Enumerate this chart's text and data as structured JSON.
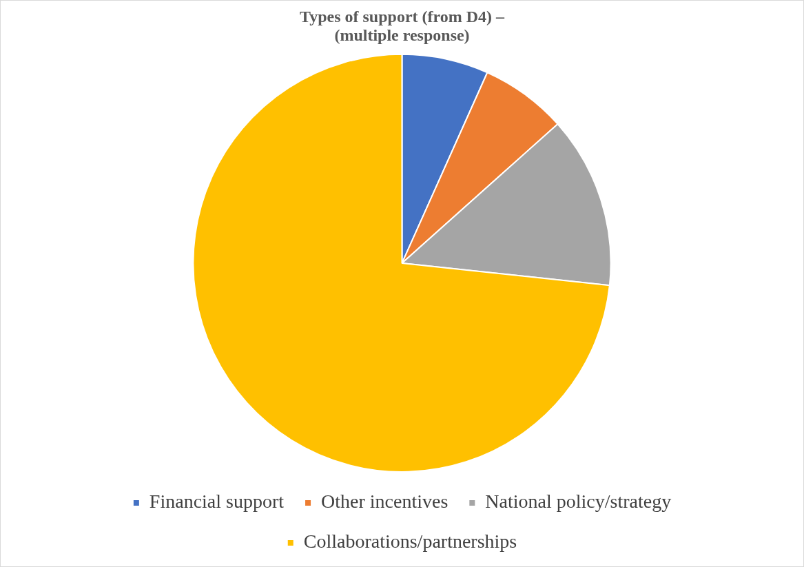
{
  "chart_data": {
    "type": "pie",
    "title": "Types of support (from D4) –\n(multiple response)",
    "categories": [
      "Financial support",
      "Other incentives",
      "National policy/strategy",
      "Collaborations/partnerships"
    ],
    "values": [
      6.7,
      6.7,
      13.3,
      73.3
    ],
    "colors": [
      "#4472c4",
      "#ed7d31",
      "#a5a5a5",
      "#ffc000"
    ],
    "legend": "bottom"
  }
}
